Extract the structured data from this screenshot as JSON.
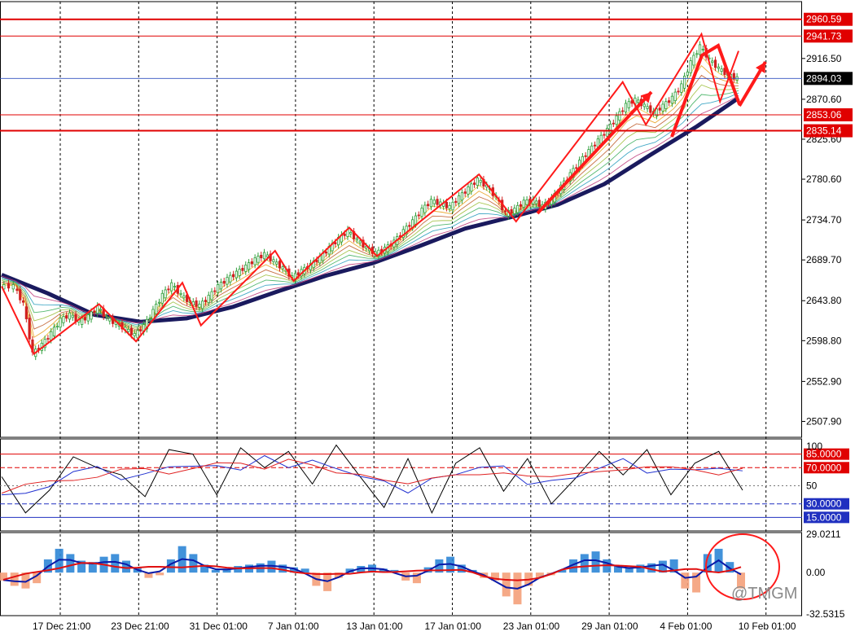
{
  "colors": {
    "background": "#ffffff",
    "grid": "#000000",
    "up_candle": "#2e9e3a",
    "down_candle": "#d02020",
    "level_line": "#e00000",
    "current_price_line": "#3050c0",
    "trend_ma": "#1a1a5e",
    "pattern": "#ff1a1a",
    "macd_pos": "#2e86d6",
    "macd_neg": "#f4a07a",
    "macd_line": "#0a1aa8",
    "signal_line": "#e01010"
  },
  "price_axis": {
    "ticks": [
      "2916.50",
      "2870.60",
      "2825.60",
      "2780.60",
      "2734.70",
      "2689.70",
      "2643.80",
      "2598.80",
      "2552.90",
      "2507.90"
    ],
    "levels": [
      {
        "label": "2960.59",
        "value": 2960.59,
        "kind": "level"
      },
      {
        "label": "2941.73",
        "value": 2941.73,
        "kind": "level"
      },
      {
        "label": "2853.06",
        "value": 2853.06,
        "kind": "level"
      },
      {
        "label": "2835.14",
        "value": 2835.14,
        "kind": "level"
      }
    ],
    "current_price": {
      "label": "2894.03",
      "value": 2894.03
    }
  },
  "time_axis": {
    "labels": [
      "17 Dec 21:00",
      "23 Dec 21:00",
      "31 Dec 01:00",
      "7 Jan 01:00",
      "13 Jan 01:00",
      "17 Jan 01:00",
      "23 Jan 01:00",
      "29 Jan 01:00",
      "4 Feb 01:00",
      "10 Feb 01:00"
    ]
  },
  "rsi_panel": {
    "ticks": [
      "100",
      "50"
    ],
    "levels": [
      {
        "label": "85.0000",
        "value": 85,
        "kind": "red"
      },
      {
        "label": "70.0000",
        "value": 70,
        "kind": "red-dash"
      },
      {
        "label": "30.0000",
        "value": 30,
        "kind": "blue-dash"
      },
      {
        "label": "15.0000",
        "value": 15,
        "kind": "blue"
      }
    ]
  },
  "macd_panel": {
    "ticks": [
      "29.0211",
      "0.00",
      "-32.5315"
    ]
  },
  "watermark": "@TMGM",
  "chart_data": {
    "type": "line",
    "symbol_series": "price",
    "price_path": [
      [
        0,
        2660
      ],
      [
        6,
        2660
      ],
      [
        10,
        2640
      ],
      [
        14,
        2584
      ],
      [
        18,
        2594
      ],
      [
        22,
        2607
      ],
      [
        26,
        2622
      ],
      [
        30,
        2628
      ],
      [
        34,
        2620
      ],
      [
        38,
        2626
      ],
      [
        42,
        2636
      ],
      [
        46,
        2624
      ],
      [
        50,
        2618
      ],
      [
        54,
        2612
      ],
      [
        58,
        2605
      ],
      [
        62,
        2615
      ],
      [
        66,
        2632
      ],
      [
        70,
        2650
      ],
      [
        74,
        2662
      ],
      [
        78,
        2650
      ],
      [
        82,
        2642
      ],
      [
        86,
        2638
      ],
      [
        90,
        2648
      ],
      [
        94,
        2660
      ],
      [
        98,
        2668
      ],
      [
        102,
        2675
      ],
      [
        106,
        2682
      ],
      [
        110,
        2690
      ],
      [
        114,
        2696
      ],
      [
        118,
        2688
      ],
      [
        122,
        2680
      ],
      [
        126,
        2670
      ],
      [
        130,
        2677
      ],
      [
        134,
        2684
      ],
      [
        138,
        2692
      ],
      [
        142,
        2703
      ],
      [
        146,
        2713
      ],
      [
        150,
        2722
      ],
      [
        154,
        2712
      ],
      [
        158,
        2703
      ],
      [
        162,
        2697
      ],
      [
        166,
        2702
      ],
      [
        170,
        2710
      ],
      [
        174,
        2722
      ],
      [
        178,
        2733
      ],
      [
        182,
        2746
      ],
      [
        186,
        2756
      ],
      [
        190,
        2753
      ],
      [
        194,
        2749
      ],
      [
        198,
        2760
      ],
      [
        202,
        2770
      ],
      [
        206,
        2780
      ],
      [
        210,
        2772
      ],
      [
        214,
        2760
      ],
      [
        218,
        2742
      ],
      [
        222,
        2746
      ],
      [
        226,
        2755
      ],
      [
        230,
        2756
      ],
      [
        234,
        2750
      ],
      [
        238,
        2758
      ],
      [
        242,
        2772
      ],
      [
        246,
        2786
      ],
      [
        250,
        2800
      ],
      [
        254,
        2812
      ],
      [
        258,
        2824
      ],
      [
        262,
        2836
      ],
      [
        266,
        2850
      ],
      [
        270,
        2864
      ],
      [
        274,
        2870
      ],
      [
        278,
        2863
      ],
      [
        282,
        2855
      ],
      [
        286,
        2863
      ],
      [
        290,
        2872
      ],
      [
        294,
        2886
      ],
      [
        298,
        2912
      ],
      [
        302,
        2930
      ],
      [
        306,
        2915
      ],
      [
        310,
        2905
      ],
      [
        314,
        2898
      ],
      [
        318,
        2894
      ]
    ],
    "moving_average_slow": [
      [
        0,
        2673
      ],
      [
        20,
        2652
      ],
      [
        40,
        2628
      ],
      [
        60,
        2620
      ],
      [
        80,
        2624
      ],
      [
        100,
        2637
      ],
      [
        120,
        2655
      ],
      [
        140,
        2672
      ],
      [
        160,
        2686
      ],
      [
        180,
        2705
      ],
      [
        200,
        2725
      ],
      [
        220,
        2738
      ],
      [
        240,
        2752
      ],
      [
        260,
        2775
      ],
      [
        280,
        2808
      ],
      [
        300,
        2840
      ],
      [
        318,
        2872
      ]
    ],
    "price_range": [
      2490,
      2975
    ],
    "levels": [
      2960.59,
      2941.73,
      2853.06,
      2835.14
    ],
    "current_price": 2894.03,
    "rsi": {
      "range": [
        0,
        100
      ],
      "black": [
        60,
        20,
        45,
        82,
        70,
        62,
        38,
        90,
        85,
        40,
        92,
        70,
        88,
        52,
        95,
        60,
        26,
        80,
        20,
        75,
        92,
        44,
        80,
        30,
        58,
        88,
        62,
        90,
        40,
        75,
        88,
        45
      ],
      "levels": [
        85,
        70,
        30,
        15
      ]
    },
    "macd": {
      "range": [
        -32.5315,
        29.0211
      ],
      "histogram": [
        -6,
        -10,
        -12,
        -8,
        10,
        18,
        14,
        9,
        8,
        12,
        14,
        9,
        4,
        -4,
        -2,
        10,
        20,
        14,
        6,
        2,
        3,
        5,
        6,
        7,
        9,
        6,
        4,
        3,
        -10,
        -14,
        -4,
        3,
        5,
        6,
        3,
        2,
        -6,
        -8,
        4,
        10,
        12,
        6,
        2,
        -4,
        -6,
        -18,
        -24,
        -10,
        -4,
        -2,
        2,
        10,
        14,
        16,
        10,
        5,
        4,
        6,
        7,
        9,
        10,
        -12,
        -15,
        14,
        18,
        8,
        -12
      ],
      "signal_bias": 0.6
    }
  }
}
